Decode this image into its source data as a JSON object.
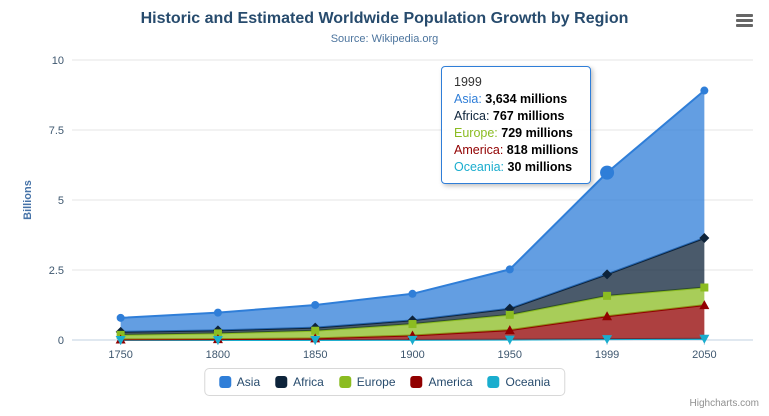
{
  "chart_data": {
    "type": "area",
    "stacked": true,
    "title": "Historic and Estimated Worldwide Population Growth by Region",
    "subtitle": "Source: Wikipedia.org",
    "xlabel": "",
    "ylabel": "Billions",
    "ylim": [
      0,
      10
    ],
    "yticks": [
      "0",
      "2.5",
      "5",
      "7.5",
      "10"
    ],
    "values_unit": "millions",
    "categories": [
      "1750",
      "1800",
      "1850",
      "1900",
      "1950",
      "1999",
      "2050"
    ],
    "series": [
      {
        "name": "Asia",
        "color": "#2f7ed8",
        "marker": "circle",
        "values": [
          502,
          635,
          809,
          947,
          1402,
          3634,
          5268
        ]
      },
      {
        "name": "Africa",
        "color": "#0d233a",
        "marker": "diamond",
        "values": [
          106,
          107,
          111,
          133,
          221,
          767,
          1766
        ]
      },
      {
        "name": "Europe",
        "color": "#8bbc21",
        "marker": "square",
        "values": [
          163,
          203,
          276,
          408,
          547,
          729,
          628
        ]
      },
      {
        "name": "America",
        "color": "#910000",
        "marker": "triangle",
        "values": [
          18,
          31,
          54,
          156,
          339,
          818,
          1201
        ]
      },
      {
        "name": "Oceania",
        "color": "#1aadce",
        "marker": "triangle-down",
        "values": [
          2,
          2,
          2,
          6,
          13,
          30,
          46
        ]
      }
    ],
    "stack_order_bottom_to_top": [
      "Oceania",
      "America",
      "Europe",
      "Africa",
      "Asia"
    ],
    "legend_position": "bottom",
    "grid": true,
    "hover_point": {
      "series": "Asia",
      "category": "1999"
    }
  },
  "tooltip": {
    "header": "1999",
    "rows": [
      {
        "name": "Asia",
        "value": "3,634 millions"
      },
      {
        "name": "Africa",
        "value": "767 millions"
      },
      {
        "name": "Europe",
        "value": "729 millions"
      },
      {
        "name": "America",
        "value": "818 millions"
      },
      {
        "name": "Oceania",
        "value": "30 millions"
      }
    ]
  },
  "icons": {
    "export_menu": "hamburger-menu-icon"
  },
  "credits": "Highcharts.com"
}
